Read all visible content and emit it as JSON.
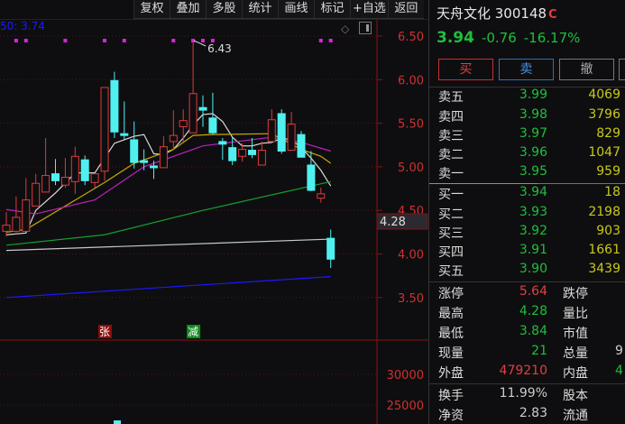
{
  "toolbar": [
    "复权",
    "叠加",
    "多股",
    "统计",
    "画线",
    "标记",
    "+自选",
    "返回"
  ],
  "ma_label": "50: 3.74",
  "chart_data": {
    "type": "candlestick",
    "yticks": [
      "6.50",
      "6.00",
      "5.50",
      "5.00",
      "4.50",
      "4.00",
      "3.50"
    ],
    "ylim": [
      3.3,
      6.6
    ],
    "candles": [
      [
        4.26,
        4.48,
        4.2,
        4.33
      ],
      [
        4.26,
        4.66,
        4.22,
        4.42
      ],
      [
        4.26,
        4.87,
        4.26,
        4.62
      ],
      [
        4.55,
        4.92,
        4.55,
        4.81
      ],
      [
        4.71,
        5.33,
        4.71,
        4.9
      ],
      [
        4.92,
        5.09,
        4.79,
        4.84
      ],
      [
        4.79,
        5.1,
        4.76,
        4.88
      ],
      [
        4.83,
        5.23,
        4.69,
        5.12
      ],
      [
        5.08,
        5.13,
        4.79,
        4.84
      ],
      [
        4.82,
        4.92,
        4.76,
        4.92
      ],
      [
        4.95,
        5.91,
        4.84,
        5.91
      ],
      [
        5.99,
        6.09,
        5.33,
        5.4
      ],
      [
        5.38,
        5.75,
        5.31,
        5.36
      ],
      [
        5.31,
        5.52,
        4.98,
        5.05
      ],
      [
        5.07,
        5.2,
        4.96,
        5.06
      ],
      [
        5.01,
        5.07,
        4.86,
        5.0
      ],
      [
        4.99,
        5.35,
        4.99,
        5.23
      ],
      [
        5.29,
        5.65,
        5.19,
        5.36
      ],
      [
        5.46,
        5.66,
        5.29,
        5.53
      ],
      [
        5.39,
        6.43,
        5.39,
        5.84
      ],
      [
        5.68,
        5.82,
        5.46,
        5.65
      ],
      [
        5.56,
        5.85,
        5.37,
        5.39
      ],
      [
        5.29,
        5.33,
        5.08,
        5.26
      ],
      [
        5.22,
        5.34,
        5.02,
        5.07
      ],
      [
        5.12,
        5.27,
        5.06,
        5.2
      ],
      [
        5.19,
        5.33,
        5.1,
        5.14
      ],
      [
        5.02,
        5.29,
        5.02,
        5.19
      ],
      [
        5.29,
        5.66,
        5.29,
        5.54
      ],
      [
        5.61,
        5.66,
        5.15,
        5.18
      ],
      [
        5.19,
        5.63,
        5.19,
        5.49
      ],
      [
        5.37,
        5.41,
        5.11,
        5.11
      ],
      [
        5.02,
        5.18,
        4.72,
        4.73
      ],
      [
        4.64,
        4.76,
        4.59,
        4.69
      ],
      [
        4.18,
        4.28,
        3.84,
        3.94
      ]
    ],
    "ma_lines": [
      {
        "color": "#d8d8d8",
        "values": [
          [
            0,
            4.22
          ],
          [
            2,
            4.24
          ],
          [
            3,
            4.5
          ],
          [
            5,
            4.7
          ],
          [
            7,
            4.93
          ],
          [
            9,
            4.93
          ],
          [
            10,
            5.1
          ],
          [
            11,
            5.27
          ],
          [
            13,
            5.35
          ],
          [
            14,
            5.37
          ],
          [
            15,
            5.15
          ],
          [
            16,
            5.14
          ],
          [
            17,
            5.2
          ],
          [
            18,
            5.33
          ],
          [
            19,
            5.48
          ],
          [
            20,
            5.6
          ],
          [
            21,
            5.61
          ],
          [
            22,
            5.52
          ],
          [
            23,
            5.34
          ],
          [
            24,
            5.24
          ],
          [
            25,
            5.24
          ],
          [
            26,
            5.27
          ],
          [
            27,
            5.28
          ],
          [
            28,
            5.33
          ],
          [
            29,
            5.31
          ],
          [
            30,
            5.22
          ],
          [
            31,
            5.1
          ],
          [
            32,
            4.96
          ],
          [
            33,
            4.78
          ]
        ]
      },
      {
        "color": "#c8a800",
        "values": [
          [
            0,
            4.25
          ],
          [
            2,
            4.28
          ],
          [
            6,
            4.55
          ],
          [
            10,
            4.82
          ],
          [
            13,
            5.04
          ],
          [
            17,
            5.2
          ],
          [
            19,
            5.36
          ],
          [
            21,
            5.37
          ],
          [
            27,
            5.38
          ],
          [
            30,
            5.2
          ],
          [
            32,
            5.12
          ],
          [
            33,
            5.04
          ]
        ]
      },
      {
        "color": "#c020c0",
        "values": [
          [
            0,
            4.51
          ],
          [
            3,
            4.46
          ],
          [
            9,
            4.62
          ],
          [
            14,
            5.0
          ],
          [
            20,
            5.24
          ],
          [
            27,
            5.34
          ],
          [
            30,
            5.28
          ],
          [
            33,
            5.18
          ]
        ]
      },
      {
        "color": "#18a030",
        "values": [
          [
            0,
            4.1
          ],
          [
            10,
            4.22
          ],
          [
            20,
            4.5
          ],
          [
            33,
            4.83
          ]
        ]
      },
      {
        "color": "#c8c8c8",
        "values": [
          [
            0,
            4.04
          ],
          [
            33,
            4.17
          ]
        ]
      },
      {
        "color": "#1a1aff",
        "values": [
          [
            0,
            3.5
          ],
          [
            33,
            3.74
          ]
        ]
      }
    ],
    "high_label": "6.43",
    "last_high_tag": "4.28",
    "signals": [
      {
        "text": "张",
        "index": 10,
        "color": "#8b0c0c"
      },
      {
        "text": "减",
        "index": 19,
        "color": "#0c8b1c"
      }
    ],
    "marker_indices": [
      1,
      2,
      6,
      10,
      12,
      17,
      19,
      20,
      21,
      32,
      33
    ],
    "volume_ticks": [
      "30000",
      "25000"
    ]
  },
  "panel": {
    "name": "天舟文化 300148",
    "badge": "C",
    "price": "3.94",
    "change": "-0.76",
    "change_pct": "-16.17%",
    "buy": "买",
    "sell": "卖",
    "cancel": "撤",
    "asks": [
      {
        "l": "卖五",
        "p": "3.99",
        "v": "4069"
      },
      {
        "l": "卖四",
        "p": "3.98",
        "v": "3796"
      },
      {
        "l": "卖三",
        "p": "3.97",
        "v": "829"
      },
      {
        "l": "卖二",
        "p": "3.96",
        "v": "1047"
      },
      {
        "l": "卖一",
        "p": "3.95",
        "v": "959"
      }
    ],
    "bids": [
      {
        "l": "买一",
        "p": "3.94",
        "v": "18"
      },
      {
        "l": "买二",
        "p": "3.93",
        "v": "2198"
      },
      {
        "l": "买三",
        "p": "3.92",
        "v": "903"
      },
      {
        "l": "买四",
        "p": "3.91",
        "v": "1661"
      },
      {
        "l": "买五",
        "p": "3.90",
        "v": "3439"
      }
    ],
    "stats": [
      {
        "l": "涨停",
        "v": "5.64",
        "c": "#e0403f",
        "l2": "跌停",
        "v2": ""
      },
      {
        "l": "最高",
        "v": "4.28",
        "c": "#1fbf3c",
        "l2": "量比",
        "v2": ""
      },
      {
        "l": "最低",
        "v": "3.84",
        "c": "#1fbf3c",
        "l2": "市值",
        "v2": ""
      },
      {
        "l": "现量",
        "v": "21",
        "c": "#1fbf3c",
        "l2": "总量",
        "v2": "9"
      },
      {
        "l": "外盘",
        "v": "479210",
        "c": "#e0403f",
        "l2": "内盘",
        "v2": "4",
        "c2": "#1fbf3c"
      }
    ],
    "stats2": [
      {
        "l": "换手",
        "v": "11.99%",
        "c": "#ccc",
        "l2": "股本",
        "v2": ""
      },
      {
        "l": "净资",
        "v": "2.83",
        "c": "#ccc",
        "l2": "流通",
        "v2": ""
      }
    ]
  }
}
